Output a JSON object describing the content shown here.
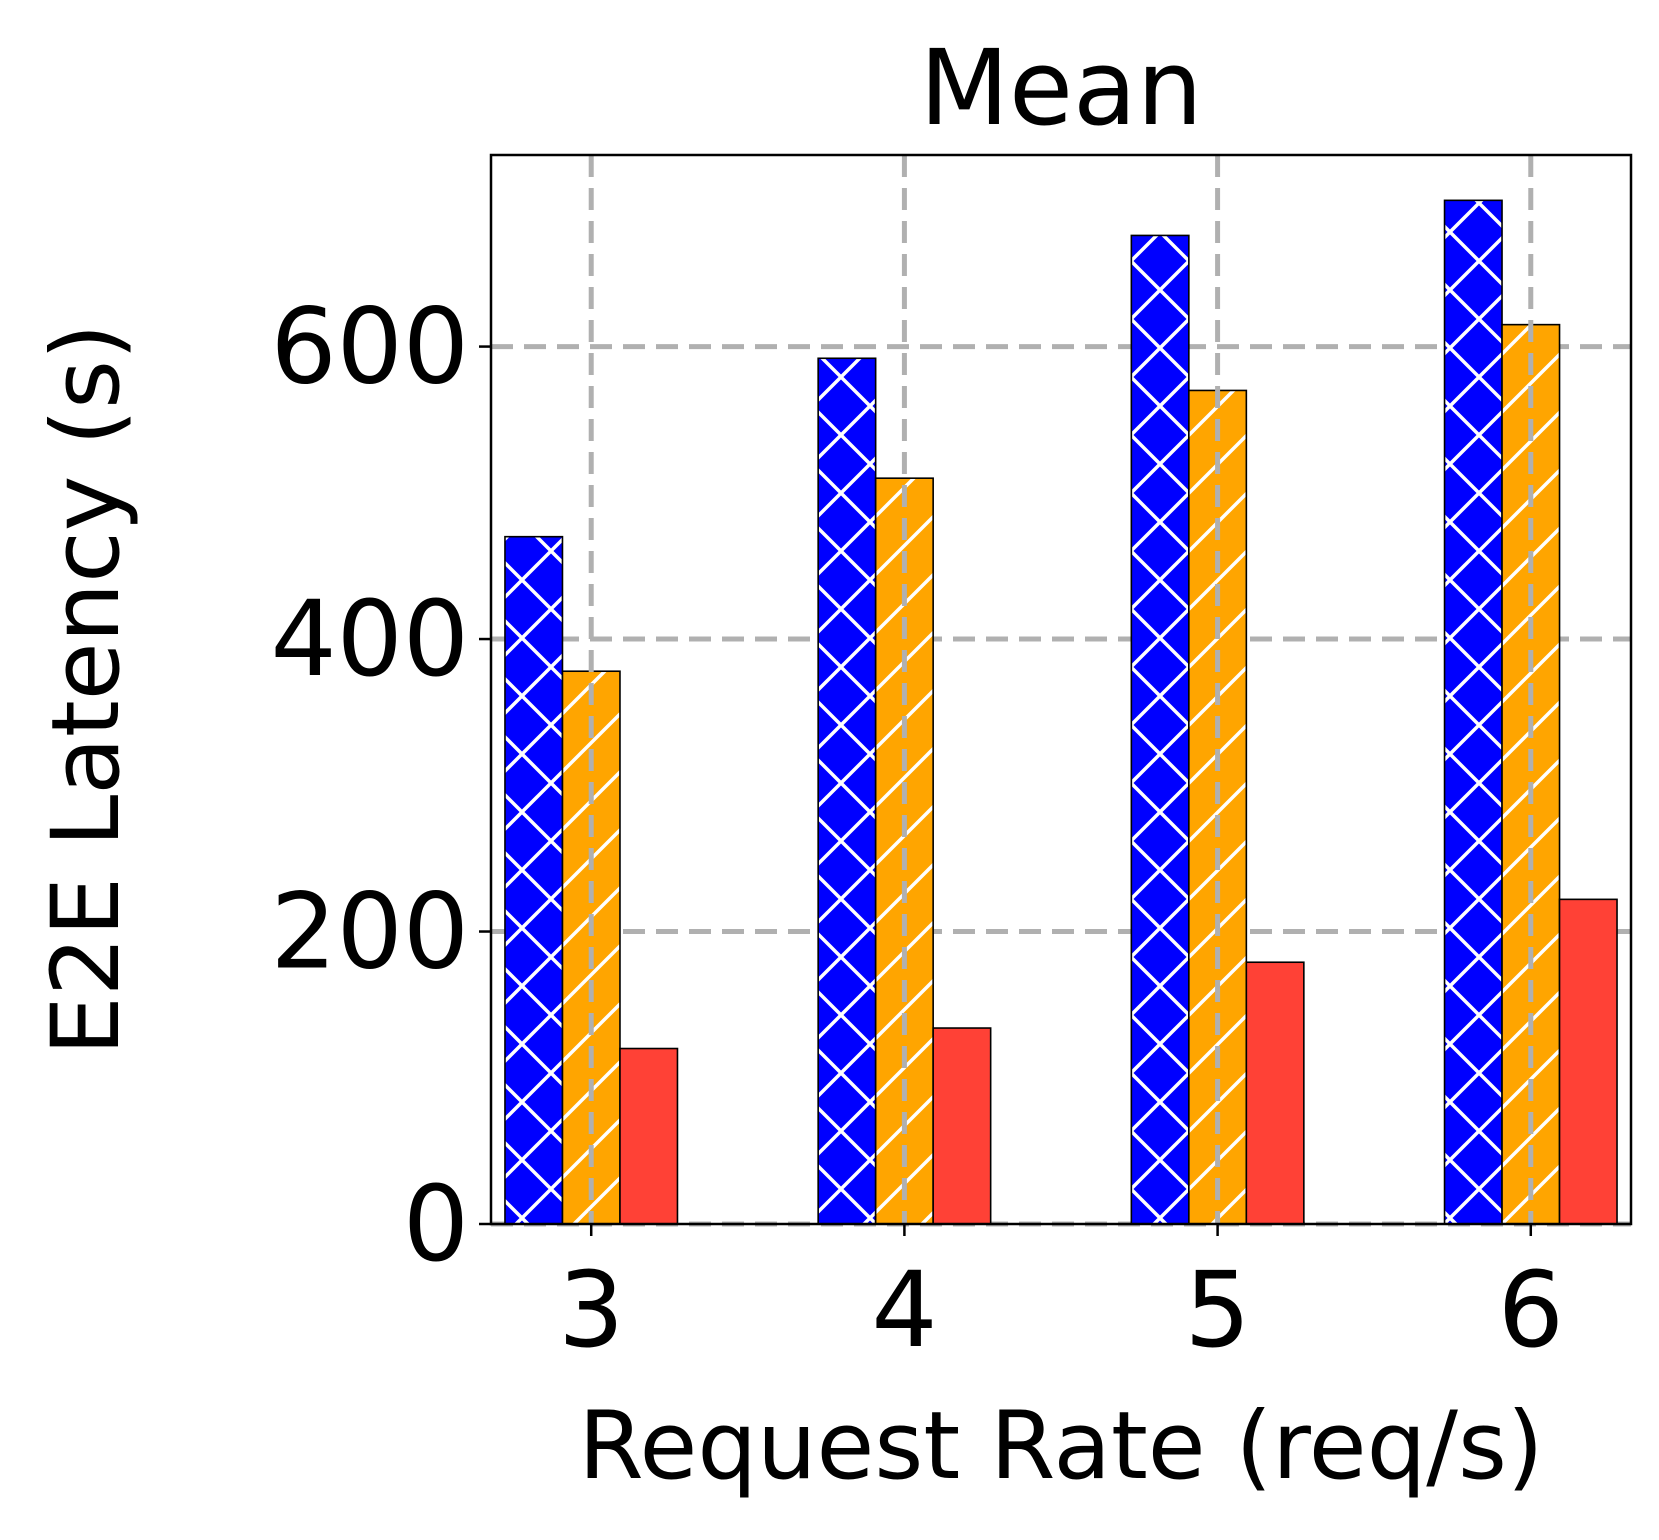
{
  "chart_data": {
    "type": "bar",
    "title": "Mean",
    "xlabel": "Request Rate (req/s)",
    "ylabel": "E2E Latency (s)",
    "categories": [
      "3",
      "4",
      "5",
      "6"
    ],
    "yticks": [
      "0",
      "200",
      "400",
      "600"
    ],
    "ylim": [
      0,
      731
    ],
    "grid": true,
    "series": [
      {
        "values": [
          470,
          592,
          676,
          700
        ],
        "color": "#0000ff",
        "hatch": "x"
      },
      {
        "values": [
          378,
          510,
          570,
          615
        ],
        "color": "#ffa500",
        "hatch": "/"
      },
      {
        "values": [
          120,
          134,
          179,
          222
        ],
        "color": "#ff4136",
        "hatch": "none"
      }
    ]
  }
}
